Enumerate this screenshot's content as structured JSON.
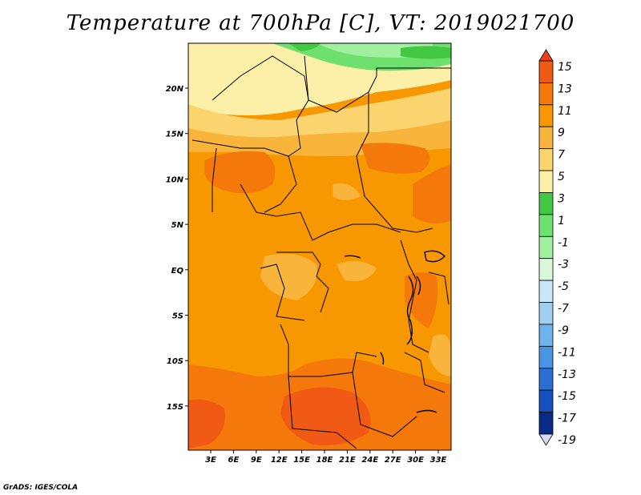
{
  "title": "Temperature at 700hPa [C], VT: 2019021700",
  "credit": "GrADS: IGES/COLA",
  "map": {
    "lon_ticks": [
      "3E",
      "6E",
      "9E",
      "12E",
      "15E",
      "18E",
      "21E",
      "24E",
      "27E",
      "30E",
      "33E"
    ],
    "lat_ticks": [
      "20N",
      "15N",
      "10N",
      "5N",
      "EQ",
      "5S",
      "10S",
      "15S"
    ]
  },
  "colorbar": {
    "labels": [
      "15",
      "13",
      "11",
      "9",
      "7",
      "5",
      "3",
      "1",
      "-1",
      "-3",
      "-5",
      "-7",
      "-9",
      "-11",
      "-13",
      "-15",
      "-17",
      "-19"
    ],
    "colors": [
      "#f03c1e",
      "#f05a14",
      "#f4780a",
      "#f89800",
      "#f9b43c",
      "#fbd470",
      "#fcf0a8",
      "#44c844",
      "#6ee06e",
      "#a0f0a0",
      "#d8f8d8",
      "#c8e8fa",
      "#a0cff0",
      "#6eb4ec",
      "#4a94e4",
      "#2a6fd4",
      "#1450c0",
      "#0a2a8a",
      "#0a1060"
    ]
  }
}
